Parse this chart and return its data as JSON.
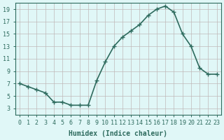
{
  "x": [
    0,
    1,
    2,
    3,
    4,
    5,
    6,
    7,
    8,
    9,
    10,
    11,
    12,
    13,
    14,
    15,
    16,
    17,
    18,
    19,
    20,
    21,
    22,
    23
  ],
  "y": [
    7,
    6.5,
    6,
    5.5,
    4,
    4,
    3.5,
    3.5,
    3.5,
    7.5,
    10.5,
    13,
    14.5,
    15.5,
    16.5,
    18,
    19,
    19.5,
    18.5,
    15,
    13,
    9.5,
    8.5,
    8.5
  ],
  "line_color": "#2e6b5e",
  "marker": "+",
  "marker_size": 5,
  "bg_color": "#e0f7f7",
  "grid_color": "#c0b8b8",
  "xlim": [
    -0.5,
    23.5
  ],
  "ylim": [
    2,
    20
  ],
  "yticks": [
    3,
    5,
    7,
    9,
    11,
    13,
    15,
    17,
    19
  ],
  "xticks": [
    0,
    1,
    2,
    3,
    4,
    5,
    6,
    7,
    8,
    9,
    10,
    11,
    12,
    13,
    14,
    15,
    16,
    17,
    18,
    19,
    20,
    21,
    22,
    23
  ],
  "xlabel": "Humidex (Indice chaleur)",
  "xlabel_fontsize": 7,
  "tick_fontsize": 6,
  "line_width": 1.2
}
